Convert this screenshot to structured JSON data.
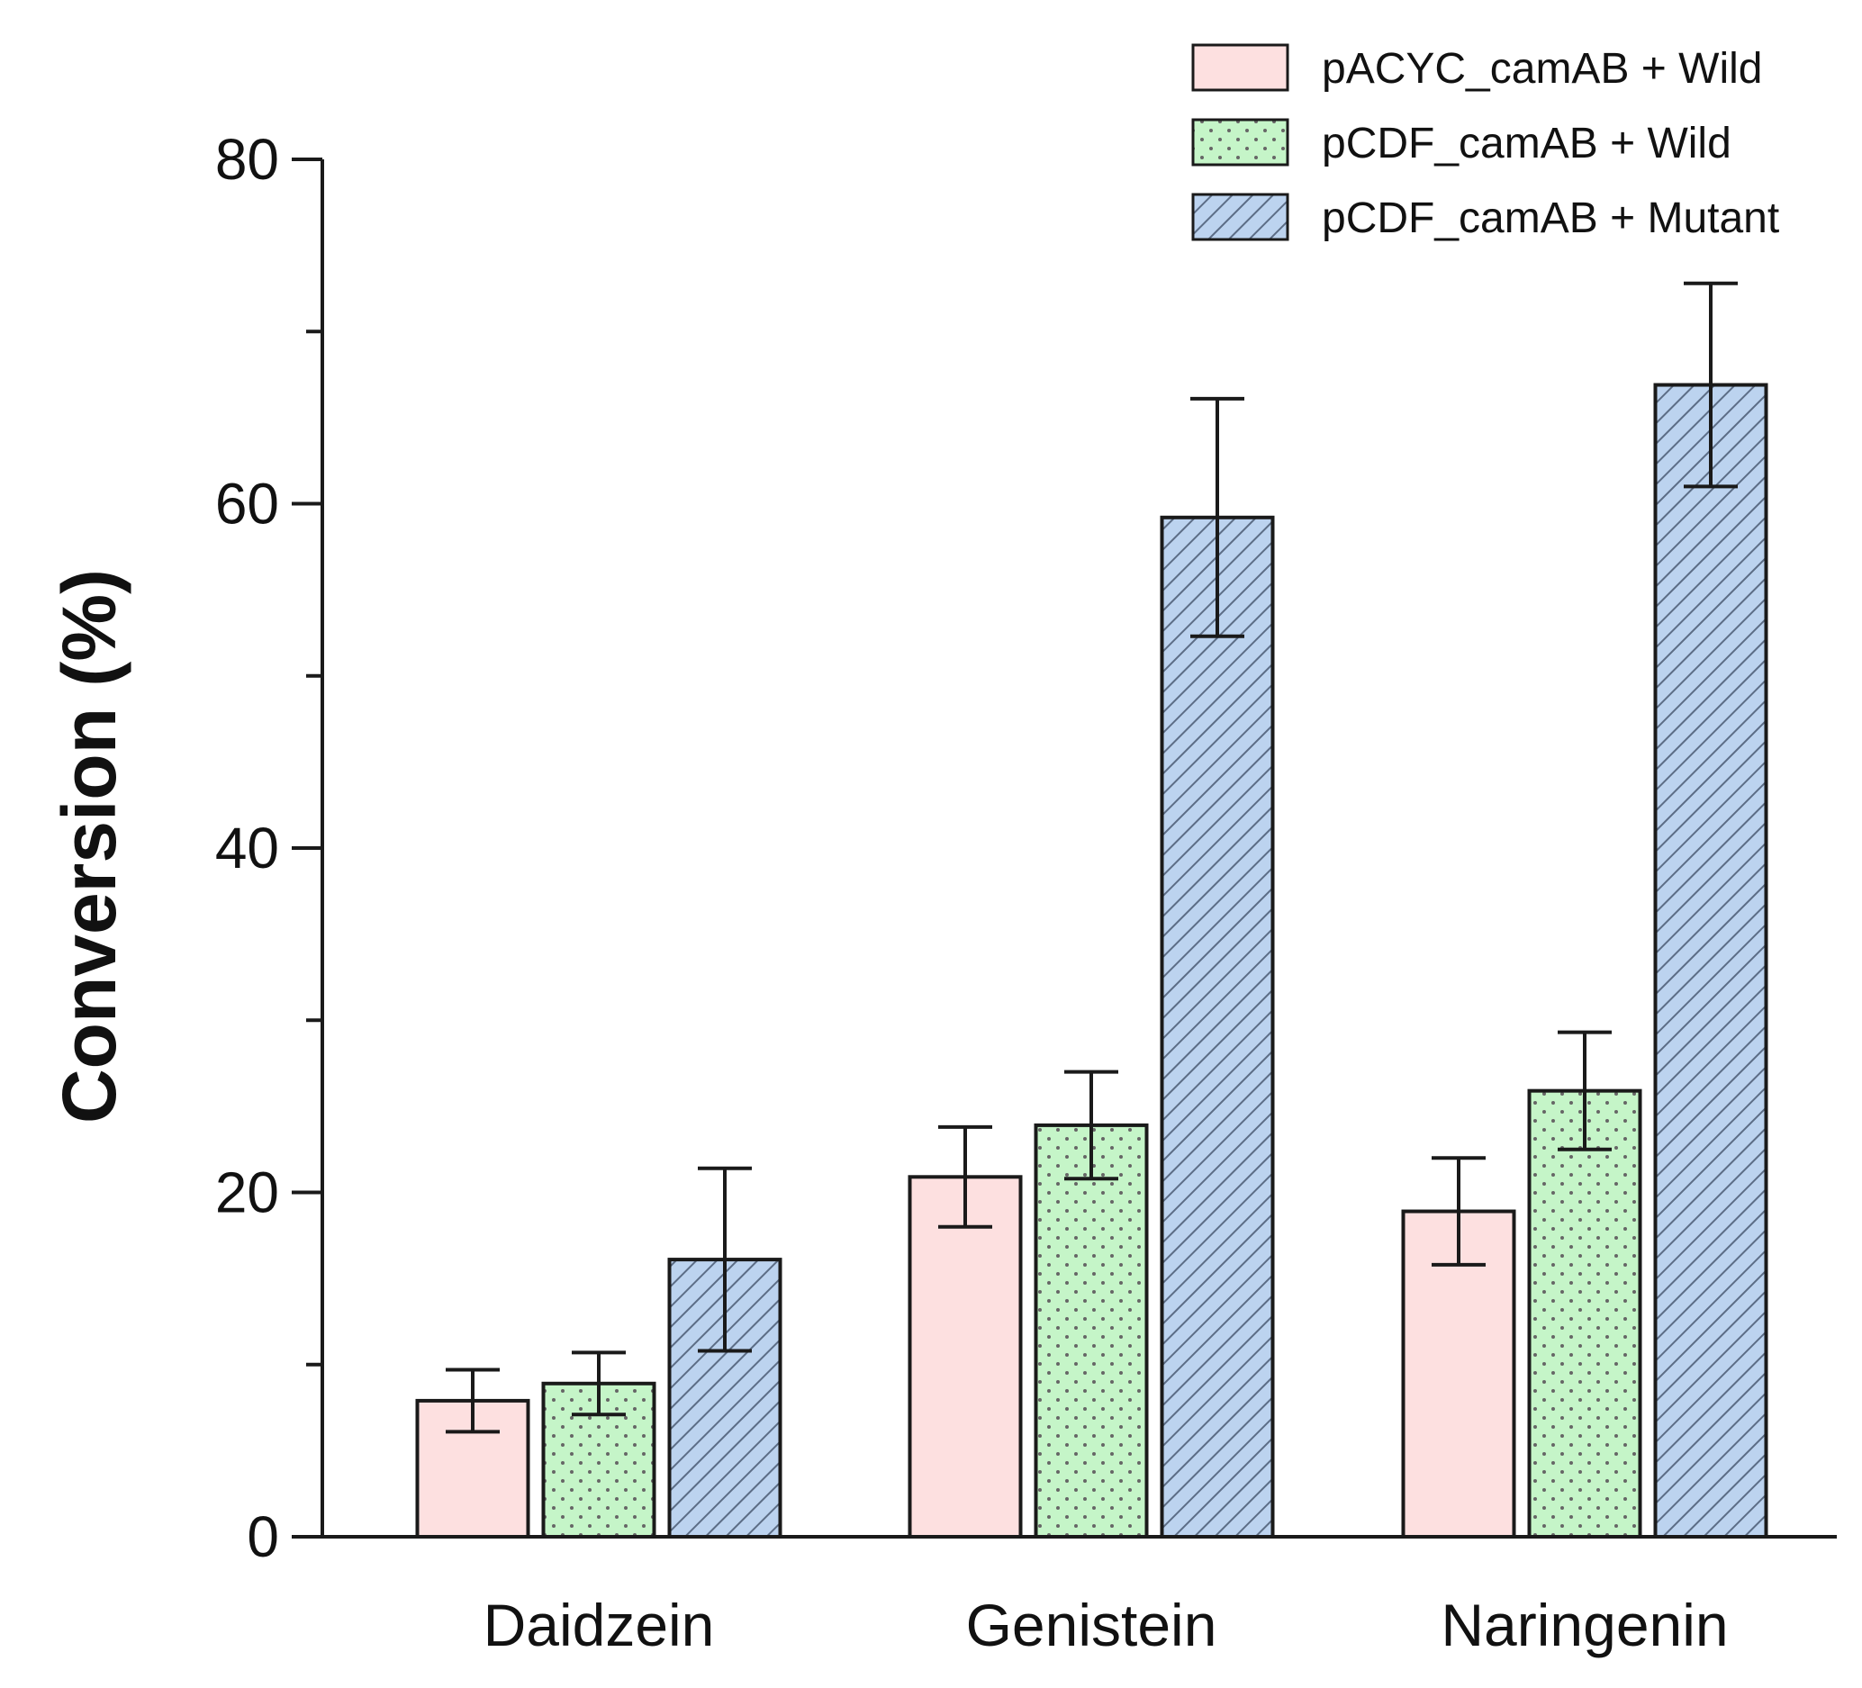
{
  "chart_data": {
    "type": "bar",
    "title": "",
    "xlabel": "",
    "ylabel": "Conversion (%)",
    "ylim": [
      0,
      80
    ],
    "yticks_major": [
      0,
      20,
      40,
      60,
      80
    ],
    "yticks_minor": [
      10,
      30,
      50,
      70
    ],
    "grid": false,
    "legend_position": "top-right",
    "categories": [
      "Daidzein",
      "Genistein",
      "Naringenin"
    ],
    "series": [
      {
        "name": "pACYC_camAB + Wild",
        "fill": "#fde0e0",
        "pattern": "none",
        "values": [
          7.9,
          20.9,
          18.9
        ],
        "errors": [
          1.8,
          2.9,
          3.1
        ]
      },
      {
        "name": "pCDF_camAB + Wild",
        "fill": "#c5f5c8",
        "pattern": "dots",
        "values": [
          8.9,
          23.9,
          25.9
        ],
        "errors": [
          1.8,
          3.1,
          3.4
        ]
      },
      {
        "name": "pCDF_camAB + Mutant",
        "fill": "#bcd3ef",
        "pattern": "hatch",
        "values": [
          16.1,
          59.2,
          66.9
        ],
        "errors": [
          5.3,
          6.9,
          5.9
        ]
      }
    ]
  },
  "colors": {
    "axis": "#1a1a1a",
    "pattern_dots": "#666666",
    "pattern_hatch": "#5c6d86"
  }
}
